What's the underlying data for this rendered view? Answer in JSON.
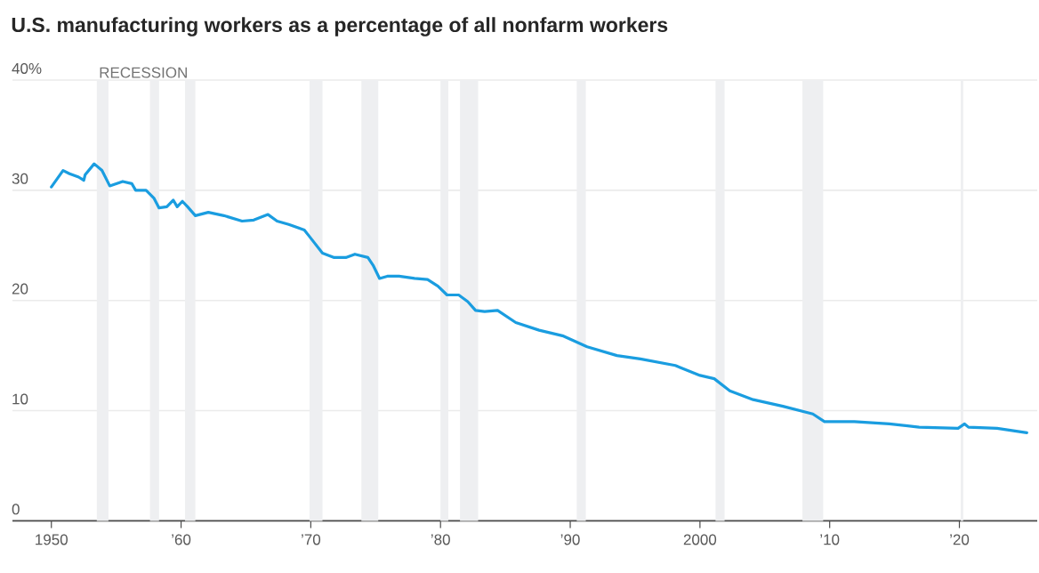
{
  "chart_data": {
    "type": "line",
    "title": "U.S. manufacturing workers as a percentage of all nonfarm workers",
    "x": [
      1950.0,
      1950.9,
      1951.4,
      1952.1,
      1952.5,
      1952.6,
      1953.3,
      1953.9,
      1954.5,
      1955.5,
      1956.2,
      1956.5,
      1957.3,
      1957.9,
      1958.3,
      1958.9,
      1959.4,
      1959.7,
      1960.1,
      1960.5,
      1961.1,
      1962.1,
      1963.3,
      1964.7,
      1965.6,
      1966.7,
      1967.4,
      1968.3,
      1969.5,
      1969.9,
      1970.9,
      1971.8,
      1972.7,
      1973.4,
      1974.4,
      1974.8,
      1975.3,
      1975.9,
      1976.8,
      1978.0,
      1979.0,
      1979.8,
      1980.5,
      1981.4,
      1982.1,
      1982.7,
      1983.4,
      1984.4,
      1985.8,
      1987.6,
      1989.4,
      1991.3,
      1993.6,
      1995.4,
      1998.1,
      2000.0,
      2001.1,
      2002.3,
      2004.1,
      2006.4,
      2008.7,
      2009.6,
      2011.9,
      2014.6,
      2016.9,
      2019.9,
      2020.4,
      2020.7,
      2022.9,
      2025.2
    ],
    "values": [
      30.3,
      31.8,
      31.5,
      31.2,
      30.9,
      31.4,
      32.4,
      31.8,
      30.4,
      30.8,
      30.6,
      30.0,
      30.0,
      29.3,
      28.4,
      28.5,
      29.1,
      28.5,
      29.0,
      28.5,
      27.7,
      28.0,
      27.7,
      27.2,
      27.3,
      27.8,
      27.2,
      26.9,
      26.4,
      25.8,
      24.3,
      23.9,
      23.9,
      24.2,
      23.9,
      23.2,
      22.0,
      22.2,
      22.2,
      22.0,
      21.9,
      21.3,
      20.5,
      20.5,
      19.9,
      19.1,
      19.0,
      19.1,
      18.0,
      17.3,
      16.8,
      15.8,
      15.0,
      14.7,
      14.1,
      13.2,
      12.9,
      11.8,
      11.0,
      10.4,
      9.7,
      9.0,
      9.0,
      8.8,
      8.5,
      8.4,
      8.8,
      8.5,
      8.4,
      8.0
    ],
    "color": "#1a9de0",
    "line_style": "solid",
    "marker": "none",
    "xlim": [
      1947,
      2026
    ],
    "ylim": [
      0,
      40
    ],
    "xticks": [
      1950,
      {
        "value": 1960,
        "label": "’60"
      },
      {
        "value": 1970,
        "label": "’70"
      },
      {
        "value": 1980,
        "label": "’80"
      },
      {
        "value": 1990,
        "label": "’90"
      },
      2000,
      {
        "value": 2010,
        "label": "’10"
      },
      {
        "value": 2020,
        "label": "’20"
      }
    ],
    "yticks": [
      0,
      10,
      20,
      30,
      {
        "value": 40,
        "label": "40%"
      }
    ],
    "grid": "y",
    "bands": [
      {
        "axis": "x",
        "from": 1953.5,
        "to": 1954.4,
        "label": "RECESSION",
        "color": "#eeeff1"
      },
      {
        "axis": "x",
        "from": 1957.6,
        "to": 1958.3,
        "color": "#eeeff1"
      },
      {
        "axis": "x",
        "from": 1960.3,
        "to": 1961.1,
        "color": "#eeeff1"
      },
      {
        "axis": "x",
        "from": 1969.9,
        "to": 1970.9,
        "color": "#eeeff1"
      },
      {
        "axis": "x",
        "from": 1973.9,
        "to": 1975.2,
        "color": "#eeeff1"
      },
      {
        "axis": "x",
        "from": 1980.0,
        "to": 1980.6,
        "color": "#eeeff1"
      },
      {
        "axis": "x",
        "from": 1981.5,
        "to": 1982.9,
        "color": "#eeeff1"
      },
      {
        "axis": "x",
        "from": 1990.5,
        "to": 1991.2,
        "color": "#eeeff1"
      },
      {
        "axis": "x",
        "from": 2001.2,
        "to": 2001.9,
        "color": "#eeeff1"
      },
      {
        "axis": "x",
        "from": 2007.9,
        "to": 2009.5,
        "color": "#eeeff1"
      },
      {
        "axis": "x",
        "from": 2020.1,
        "to": 2020.3,
        "color": "#eeeff1"
      }
    ]
  }
}
